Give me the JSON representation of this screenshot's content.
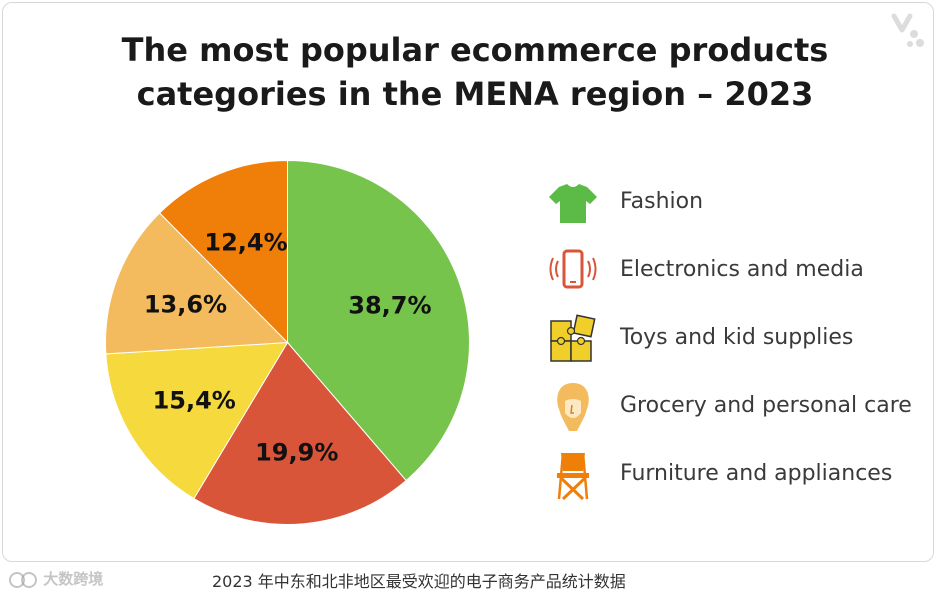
{
  "chart_data": {
    "type": "pie",
    "title": "The most popular ecommerce products categories in the MENA region – 2023",
    "title_lines": [
      "The most popular ecommerce products",
      "categories in the MENA region – 2023"
    ],
    "slices": [
      {
        "label": "Fashion",
        "value": 38.7,
        "display": "38,7%",
        "color": "#76c44b",
        "icon": "t-shirt-icon"
      },
      {
        "label": "Electronics and media",
        "value": 19.9,
        "display": "19,9%",
        "color": "#d8553a",
        "icon": "smartphone-icon"
      },
      {
        "label": "Toys and kid supplies",
        "value": 15.4,
        "display": "15,4%",
        "color": "#f6d93c",
        "icon": "puzzle-icon"
      },
      {
        "label": "Grocery and personal care",
        "value": 13.6,
        "display": "13,6%",
        "color": "#f3bb5e",
        "icon": "face-icon"
      },
      {
        "label": "Furniture and appliances",
        "value": 12.4,
        "display": "12,4%",
        "color": "#f07f0a",
        "icon": "folding-chair-icon"
      }
    ],
    "start_angle": "top",
    "direction": "clockwise",
    "legend_position": "right"
  },
  "caption": "2023 年中东和北非地区最受欢迎的电子商务产品统计数据",
  "watermark": "大数跨境"
}
